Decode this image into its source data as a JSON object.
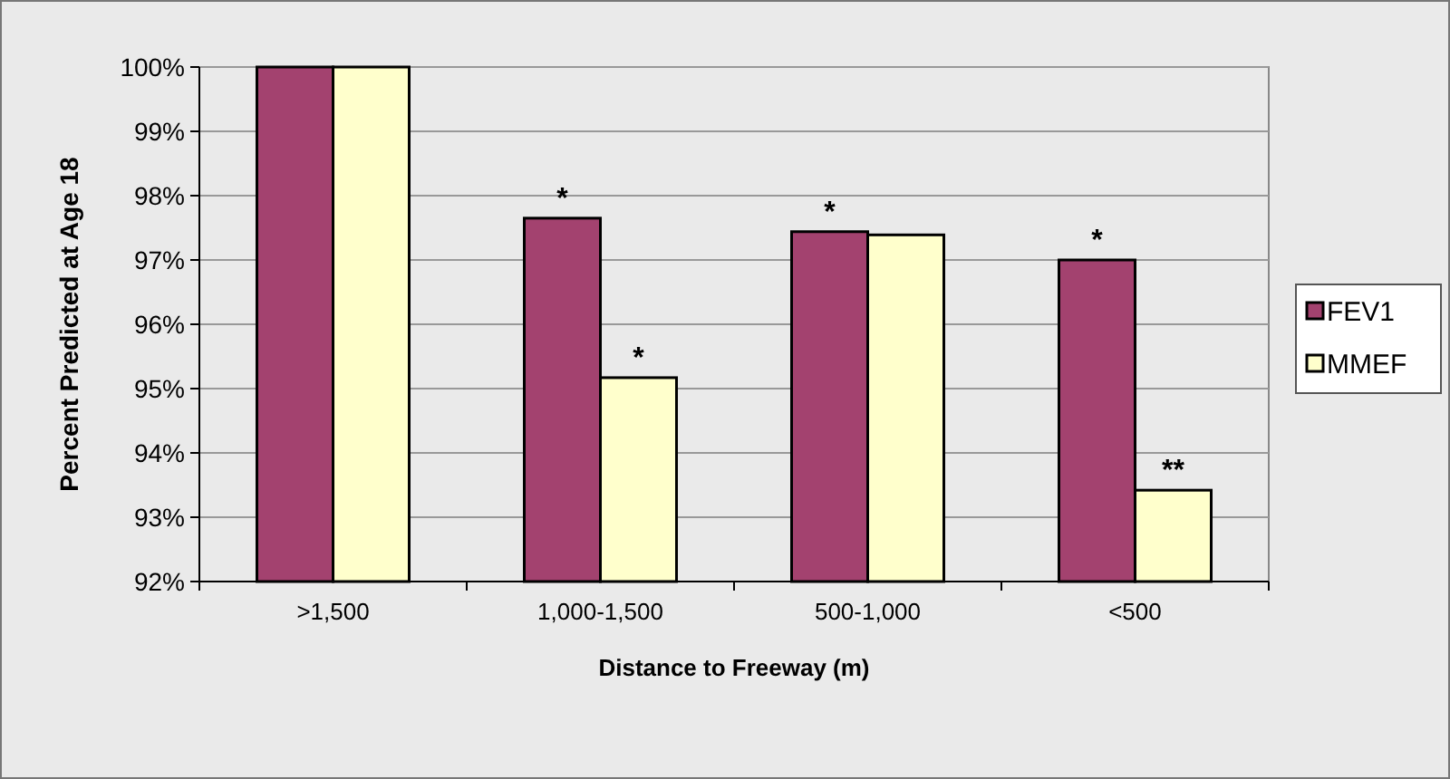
{
  "chart_data": {
    "type": "bar",
    "xlabel": "Distance to Freeway (m)",
    "ylabel": "Percent Predicted at Age 18",
    "categories": [
      ">1,500",
      "1,000-1,500",
      "500-1,000",
      "<500"
    ],
    "series": [
      {
        "name": "FEV1",
        "color": "#a3426f",
        "values": [
          100,
          97.65,
          97.44,
          97.0
        ]
      },
      {
        "name": "MMEF",
        "color": "#ffffcc",
        "values": [
          100,
          95.17,
          97.39,
          93.42
        ]
      }
    ],
    "ylim": [
      92,
      100
    ],
    "yticks": [
      {
        "value": 92,
        "label": "92%"
      },
      {
        "value": 93,
        "label": "93%"
      },
      {
        "value": 94,
        "label": "94%"
      },
      {
        "value": 95,
        "label": "95%"
      },
      {
        "value": 96,
        "label": "96%"
      },
      {
        "value": 97,
        "label": "97%"
      },
      {
        "value": 98,
        "label": "98%"
      },
      {
        "value": 99,
        "label": "99%"
      },
      {
        "value": 100,
        "label": "100%"
      }
    ],
    "grid": "y",
    "legend": "right",
    "annotations": [
      {
        "text": "*",
        "x": "1,000-1,500",
        "y": 97.65
      },
      {
        "text": "*",
        "x": "1,000-1,500",
        "y": 95.17
      },
      {
        "text": "*",
        "x": "500-1,000",
        "y": 97.44
      },
      {
        "text": "*",
        "x": "<500",
        "y": 97.0
      },
      {
        "text": "**",
        "x": "<500",
        "y": 93.42
      }
    ]
  }
}
